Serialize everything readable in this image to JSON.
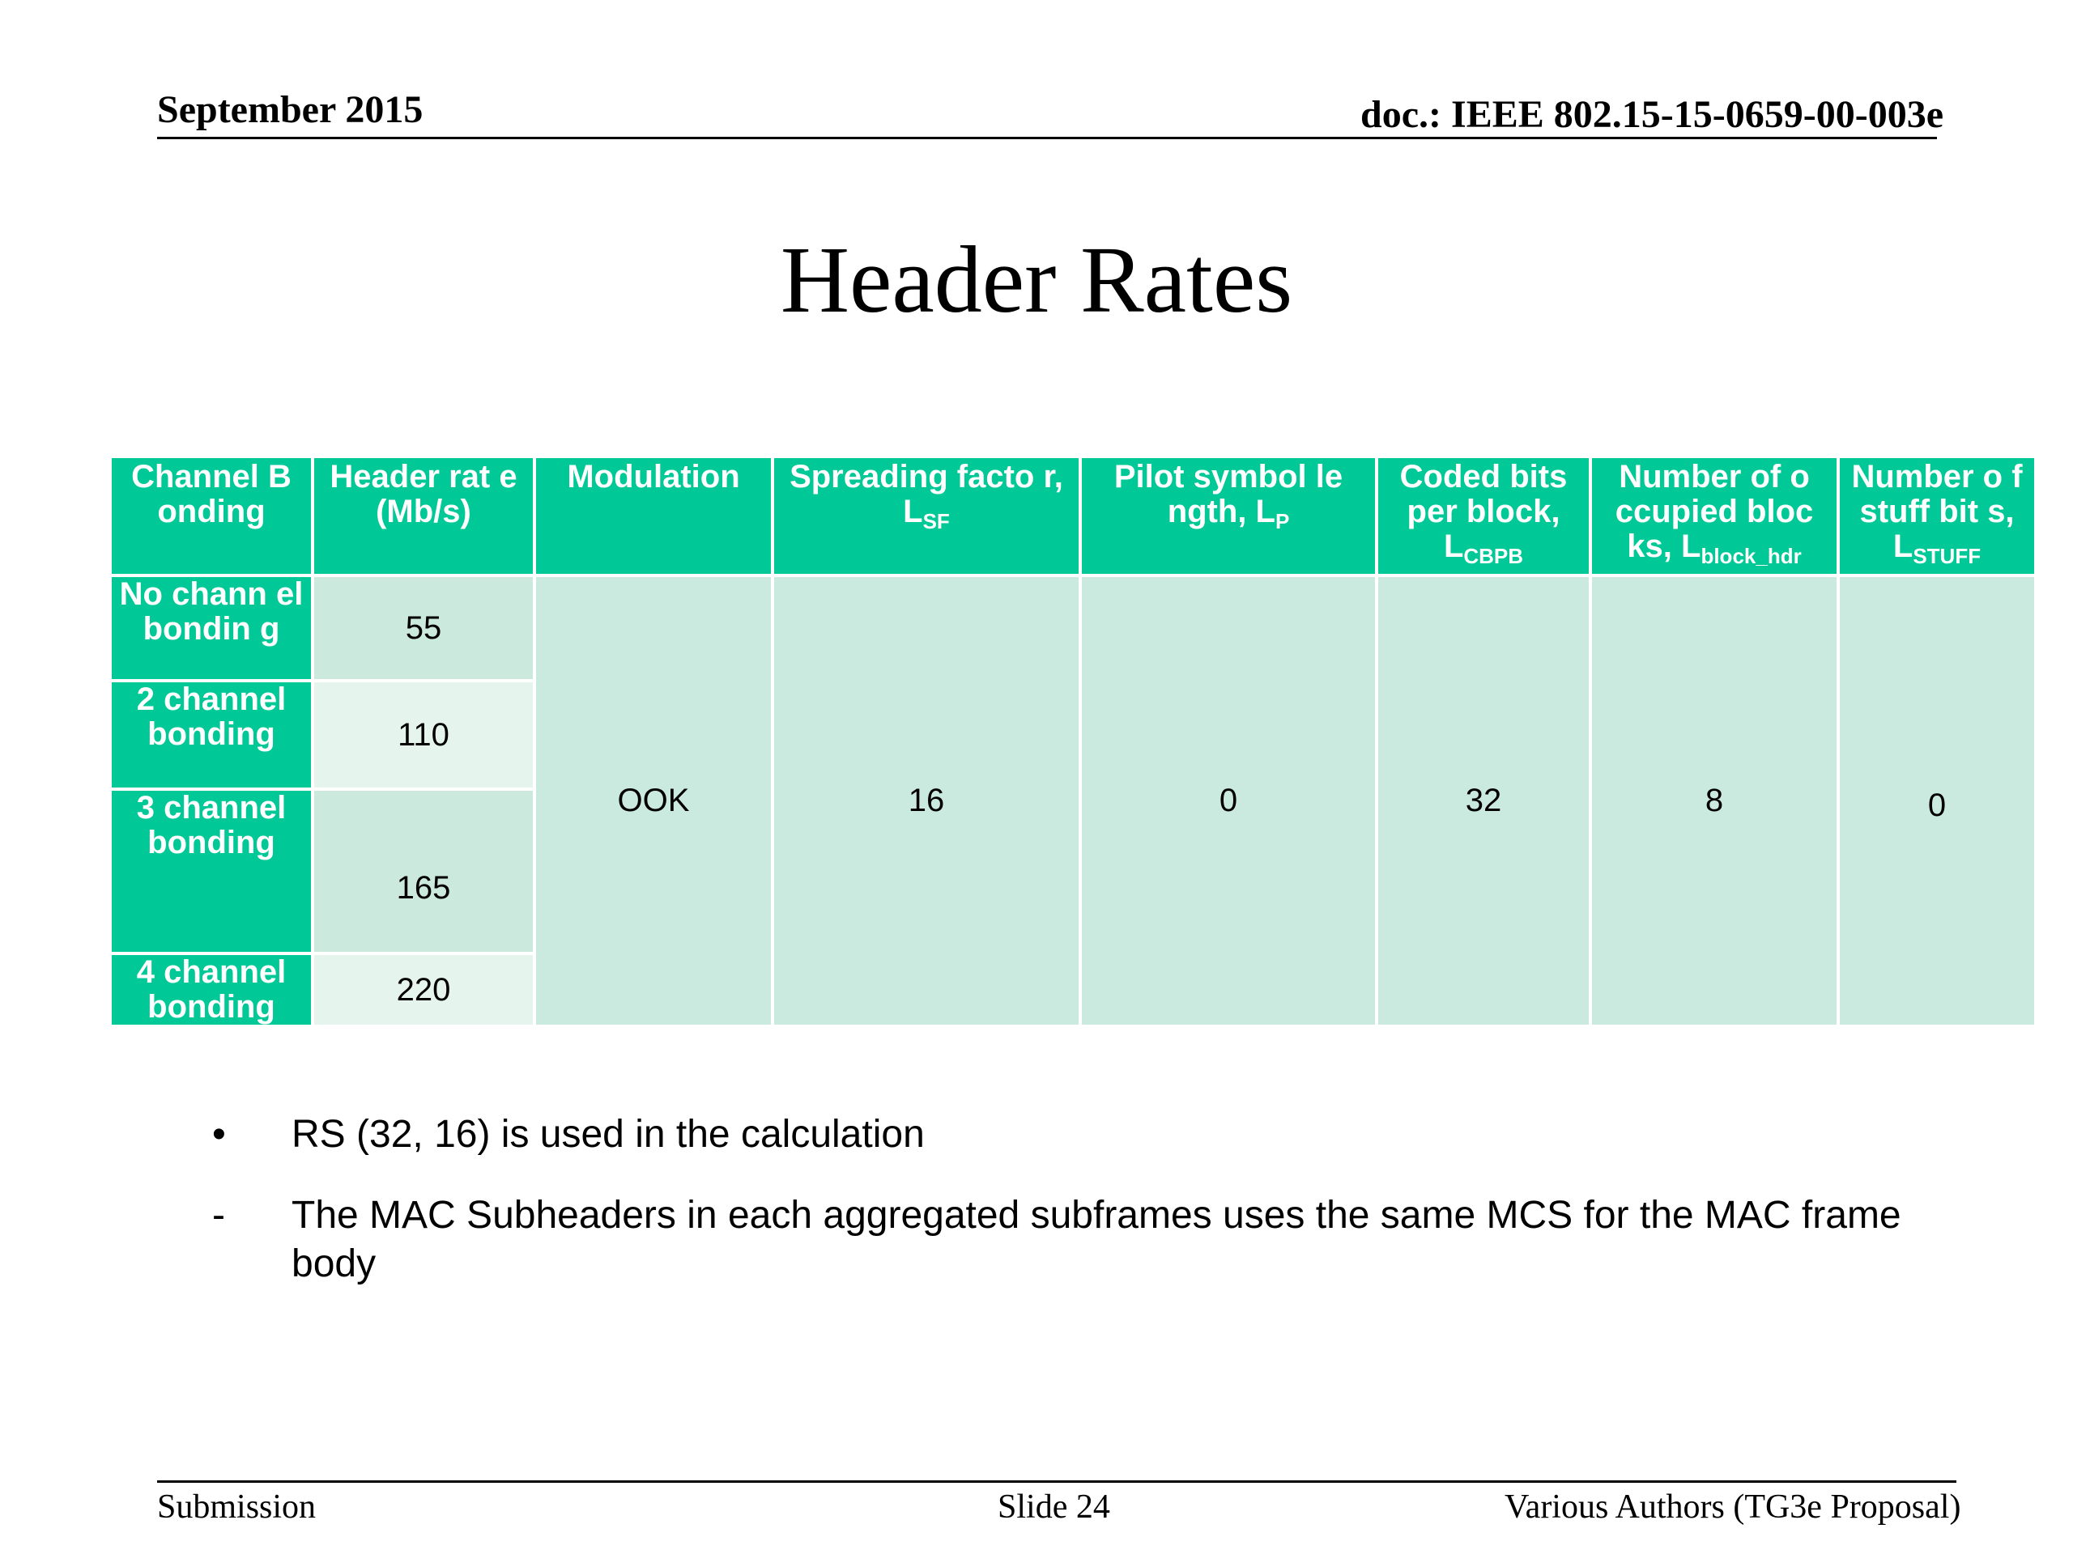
{
  "header": {
    "date": "September 2015",
    "doc": "doc.: IEEE 802.15-15-0659-00-003e"
  },
  "title": "Header Rates",
  "table": {
    "columns": [
      {
        "text": "Channel B onding",
        "sub": ""
      },
      {
        "text": "Header rat e (Mb/s)",
        "sub": ""
      },
      {
        "text": "Modulation",
        "sub": ""
      },
      {
        "text": "Spreading facto r, L",
        "sub": "SF"
      },
      {
        "text": "Pilot symbol le ngth, L",
        "sub": "P"
      },
      {
        "text": "Coded bits per block, L",
        "sub": "CBPB"
      },
      {
        "text": "Number of o ccupied bloc ks, L",
        "sub": "block_hdr"
      },
      {
        "text": "Number o f stuff bit s, L",
        "sub": "STUFF"
      }
    ],
    "rows": [
      {
        "bonding": "No chann el bondin g",
        "rate": "55"
      },
      {
        "bonding": "2 channel bonding",
        "rate": "110"
      },
      {
        "bonding": "3 channel bonding",
        "rate": "165"
      },
      {
        "bonding": "4 channel bonding",
        "rate": "220"
      }
    ],
    "shared": {
      "modulation": "OOK",
      "spreading_factor": "16",
      "pilot_length": "0",
      "coded_bits": "32",
      "occupied_blocks": "8",
      "stuff_bits": "0"
    }
  },
  "bullets": [
    {
      "marker": "•",
      "text": "RS (32, 16) is used in the calculation"
    },
    {
      "marker": "-",
      "text": "The MAC Subheaders in each aggregated subframes uses the same MCS for the MAC frame body"
    }
  ],
  "footer": {
    "left": "Submission",
    "center": "Slide 24",
    "right": "Various Authors (TG3e Proposal)"
  }
}
